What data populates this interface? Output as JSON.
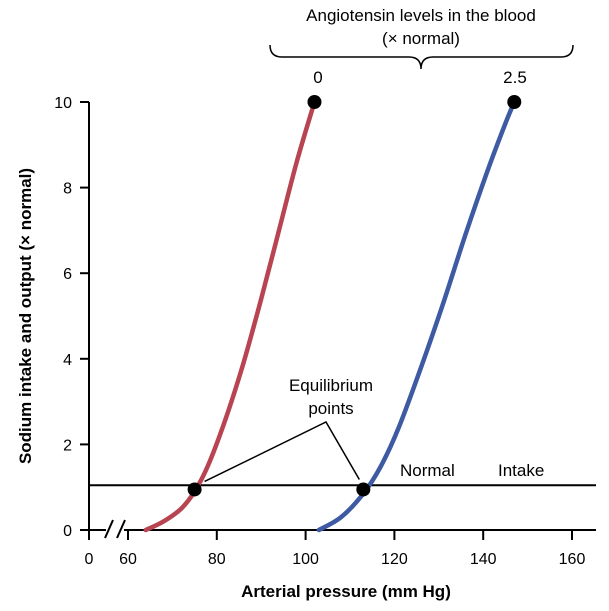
{
  "chart_data": {
    "type": "line",
    "title": "",
    "xlabel": "Arterial pressure (mm Hg)",
    "ylabel": "Sodium intake and output (× normal)",
    "xlim": [
      60,
      160
    ],
    "ylim": [
      0,
      10
    ],
    "x_ticks": [
      0,
      60,
      80,
      100,
      120,
      140,
      160
    ],
    "y_ticks": [
      0,
      2,
      4,
      6,
      8,
      10
    ],
    "axis_break": true,
    "grid": false,
    "series": [
      {
        "name": "0",
        "color": "#b84452",
        "x": [
          64,
          68,
          72,
          75,
          78,
          82,
          86,
          90,
          94,
          98,
          102
        ],
        "y": [
          0.0,
          0.2,
          0.5,
          0.9,
          1.5,
          2.6,
          3.9,
          5.4,
          7.0,
          8.6,
          10.0
        ],
        "endpoint": [
          102,
          10
        ]
      },
      {
        "name": "2.5",
        "color": "#3e5aa3",
        "x": [
          103,
          108,
          113,
          117,
          121,
          126,
          131,
          136,
          141,
          145,
          147
        ],
        "y": [
          0.0,
          0.3,
          0.85,
          1.5,
          2.4,
          3.8,
          5.3,
          6.9,
          8.4,
          9.5,
          10.0
        ],
        "endpoint": [
          147,
          10
        ]
      }
    ],
    "reference_line": {
      "y": 1.0,
      "label_parts": [
        "Normal",
        "Intake"
      ]
    },
    "equilibrium_points": [
      {
        "x": 75,
        "y": 0.9
      },
      {
        "x": 113,
        "y": 0.9
      }
    ],
    "annotations": {
      "equilibrium_label_lines": [
        "Equilibrium",
        "points"
      ],
      "angiotensin_label_lines": [
        "Angiotensin levels in the blood",
        "(× normal)"
      ],
      "level_labels": [
        "0",
        "2.5"
      ]
    }
  }
}
